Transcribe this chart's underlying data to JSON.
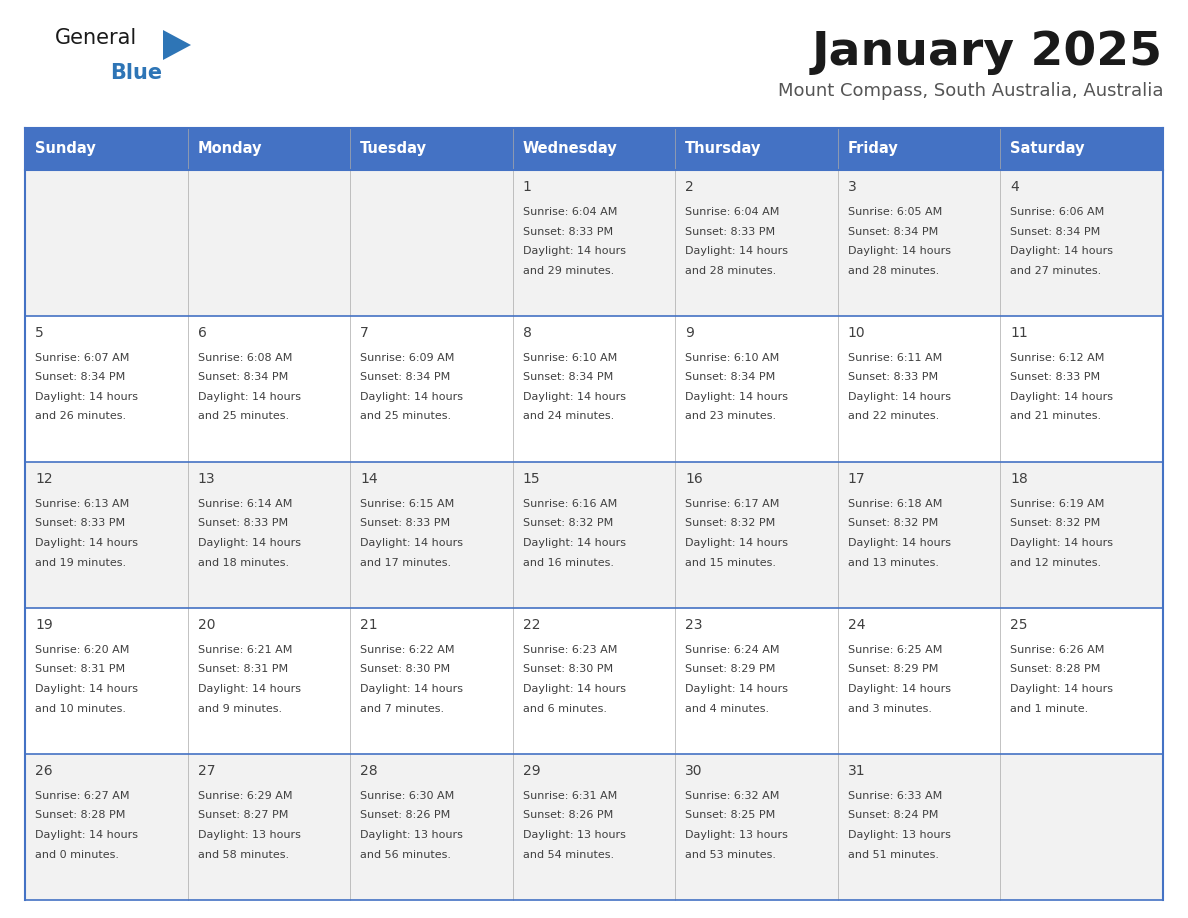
{
  "title": "January 2025",
  "subtitle": "Mount Compass, South Australia, Australia",
  "days_of_week": [
    "Sunday",
    "Monday",
    "Tuesday",
    "Wednesday",
    "Thursday",
    "Friday",
    "Saturday"
  ],
  "header_bg": "#4472C4",
  "header_text": "#FFFFFF",
  "row_bg_odd": "#F2F2F2",
  "row_bg_even": "#FFFFFF",
  "border_color": "#4472C4",
  "row_border_color": "#4472C4",
  "text_color": "#404040",
  "title_color": "#1a1a1a",
  "subtitle_color": "#555555",
  "logo_general_color": "#1a1a1a",
  "logo_blue_color": "#2E75B6",
  "calendar": [
    [
      {
        "day": "",
        "sunrise": "",
        "sunset": "",
        "daylight": ""
      },
      {
        "day": "",
        "sunrise": "",
        "sunset": "",
        "daylight": ""
      },
      {
        "day": "",
        "sunrise": "",
        "sunset": "",
        "daylight": ""
      },
      {
        "day": "1",
        "sunrise": "6:04 AM",
        "sunset": "8:33 PM",
        "daylight": "14 hours and 29 minutes."
      },
      {
        "day": "2",
        "sunrise": "6:04 AM",
        "sunset": "8:33 PM",
        "daylight": "14 hours and 28 minutes."
      },
      {
        "day": "3",
        "sunrise": "6:05 AM",
        "sunset": "8:34 PM",
        "daylight": "14 hours and 28 minutes."
      },
      {
        "day": "4",
        "sunrise": "6:06 AM",
        "sunset": "8:34 PM",
        "daylight": "14 hours and 27 minutes."
      }
    ],
    [
      {
        "day": "5",
        "sunrise": "6:07 AM",
        "sunset": "8:34 PM",
        "daylight": "14 hours and 26 minutes."
      },
      {
        "day": "6",
        "sunrise": "6:08 AM",
        "sunset": "8:34 PM",
        "daylight": "14 hours and 25 minutes."
      },
      {
        "day": "7",
        "sunrise": "6:09 AM",
        "sunset": "8:34 PM",
        "daylight": "14 hours and 25 minutes."
      },
      {
        "day": "8",
        "sunrise": "6:10 AM",
        "sunset": "8:34 PM",
        "daylight": "14 hours and 24 minutes."
      },
      {
        "day": "9",
        "sunrise": "6:10 AM",
        "sunset": "8:34 PM",
        "daylight": "14 hours and 23 minutes."
      },
      {
        "day": "10",
        "sunrise": "6:11 AM",
        "sunset": "8:33 PM",
        "daylight": "14 hours and 22 minutes."
      },
      {
        "day": "11",
        "sunrise": "6:12 AM",
        "sunset": "8:33 PM",
        "daylight": "14 hours and 21 minutes."
      }
    ],
    [
      {
        "day": "12",
        "sunrise": "6:13 AM",
        "sunset": "8:33 PM",
        "daylight": "14 hours and 19 minutes."
      },
      {
        "day": "13",
        "sunrise": "6:14 AM",
        "sunset": "8:33 PM",
        "daylight": "14 hours and 18 minutes."
      },
      {
        "day": "14",
        "sunrise": "6:15 AM",
        "sunset": "8:33 PM",
        "daylight": "14 hours and 17 minutes."
      },
      {
        "day": "15",
        "sunrise": "6:16 AM",
        "sunset": "8:32 PM",
        "daylight": "14 hours and 16 minutes."
      },
      {
        "day": "16",
        "sunrise": "6:17 AM",
        "sunset": "8:32 PM",
        "daylight": "14 hours and 15 minutes."
      },
      {
        "day": "17",
        "sunrise": "6:18 AM",
        "sunset": "8:32 PM",
        "daylight": "14 hours and 13 minutes."
      },
      {
        "day": "18",
        "sunrise": "6:19 AM",
        "sunset": "8:32 PM",
        "daylight": "14 hours and 12 minutes."
      }
    ],
    [
      {
        "day": "19",
        "sunrise": "6:20 AM",
        "sunset": "8:31 PM",
        "daylight": "14 hours and 10 minutes."
      },
      {
        "day": "20",
        "sunrise": "6:21 AM",
        "sunset": "8:31 PM",
        "daylight": "14 hours and 9 minutes."
      },
      {
        "day": "21",
        "sunrise": "6:22 AM",
        "sunset": "8:30 PM",
        "daylight": "14 hours and 7 minutes."
      },
      {
        "day": "22",
        "sunrise": "6:23 AM",
        "sunset": "8:30 PM",
        "daylight": "14 hours and 6 minutes."
      },
      {
        "day": "23",
        "sunrise": "6:24 AM",
        "sunset": "8:29 PM",
        "daylight": "14 hours and 4 minutes."
      },
      {
        "day": "24",
        "sunrise": "6:25 AM",
        "sunset": "8:29 PM",
        "daylight": "14 hours and 3 minutes."
      },
      {
        "day": "25",
        "sunrise": "6:26 AM",
        "sunset": "8:28 PM",
        "daylight": "14 hours and 1 minute."
      }
    ],
    [
      {
        "day": "26",
        "sunrise": "6:27 AM",
        "sunset": "8:28 PM",
        "daylight": "14 hours and 0 minutes."
      },
      {
        "day": "27",
        "sunrise": "6:29 AM",
        "sunset": "8:27 PM",
        "daylight": "13 hours and 58 minutes."
      },
      {
        "day": "28",
        "sunrise": "6:30 AM",
        "sunset": "8:26 PM",
        "daylight": "13 hours and 56 minutes."
      },
      {
        "day": "29",
        "sunrise": "6:31 AM",
        "sunset": "8:26 PM",
        "daylight": "13 hours and 54 minutes."
      },
      {
        "day": "30",
        "sunrise": "6:32 AM",
        "sunset": "8:25 PM",
        "daylight": "13 hours and 53 minutes."
      },
      {
        "day": "31",
        "sunrise": "6:33 AM",
        "sunset": "8:24 PM",
        "daylight": "13 hours and 51 minutes."
      },
      {
        "day": "",
        "sunrise": "",
        "sunset": "",
        "daylight": ""
      }
    ]
  ]
}
